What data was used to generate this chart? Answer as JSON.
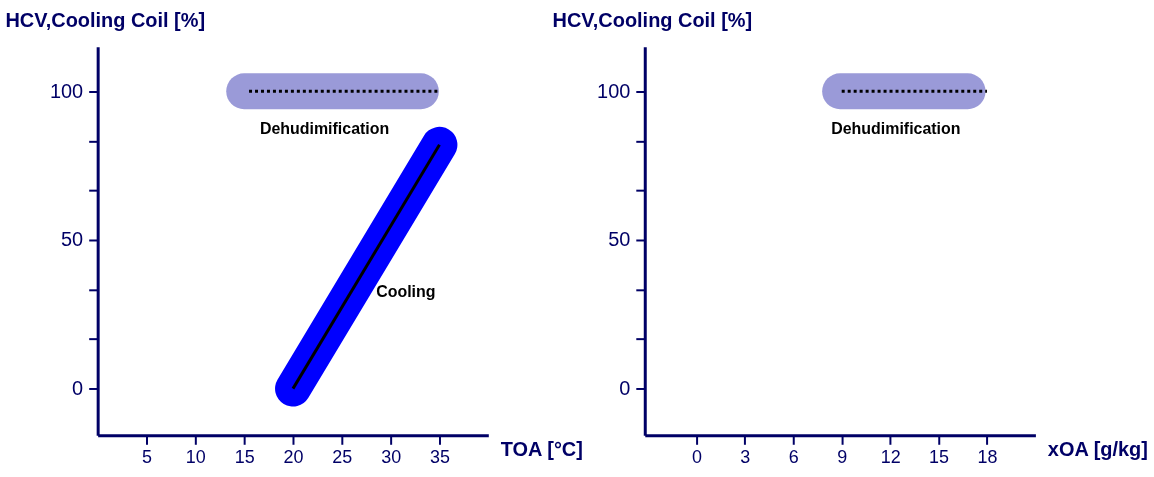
{
  "chart_data": [
    {
      "type": "line",
      "xlabel": "TOA [°C]",
      "ylabel": "HCV,Cooling Coil [%]",
      "xlim": [
        0,
        40
      ],
      "ylim": [
        -15.7,
        115
      ],
      "xticks": [
        5,
        10,
        15,
        20,
        25,
        30,
        35
      ],
      "yticks": [
        0,
        {
          "value": 16.67,
          "label": null
        },
        {
          "value": 33.33,
          "label": null
        },
        50,
        {
          "value": 66.67,
          "label": null
        },
        {
          "value": 83.33,
          "label": null
        },
        100
      ],
      "series": [
        {
          "name": "Dehudimification",
          "color": "#9a9ad8",
          "x": [
            15,
            33.1
          ],
          "values": [
            100,
            100
          ]
        },
        {
          "color": "#000000",
          "line_style": "dotted",
          "x": [
            15.5,
            35
          ],
          "values": [
            100,
            100
          ]
        },
        {
          "name": "Cooling",
          "color": "#0000ff",
          "x": [
            20,
            35
          ],
          "values": [
            0,
            82
          ]
        },
        {
          "color": "#000000",
          "line_style": "solid",
          "x": [
            20,
            35
          ],
          "values": [
            0,
            82
          ]
        }
      ]
    },
    {
      "type": "line",
      "xlabel": "xOA [g/kg]",
      "ylabel": "HCV,Cooling Coil [%]",
      "xlim": [
        -3.2,
        21
      ],
      "ylim": [
        -15.7,
        115
      ],
      "xticks": [
        0,
        3,
        6,
        9,
        12,
        15,
        18
      ],
      "yticks": [
        0,
        {
          "value": 16.67,
          "label": null
        },
        {
          "value": 33.33,
          "label": null
        },
        50,
        {
          "value": 66.67,
          "label": null
        },
        {
          "value": 83.33,
          "label": null
        },
        100
      ],
      "series": [
        {
          "name": "Dehudimification",
          "color": "#9a9ad8",
          "x": [
            8.9,
            16.8
          ],
          "values": [
            100,
            100
          ]
        },
        {
          "color": "#000000",
          "line_style": "dotted",
          "x": [
            9,
            18
          ],
          "values": [
            100,
            100
          ]
        }
      ]
    }
  ]
}
